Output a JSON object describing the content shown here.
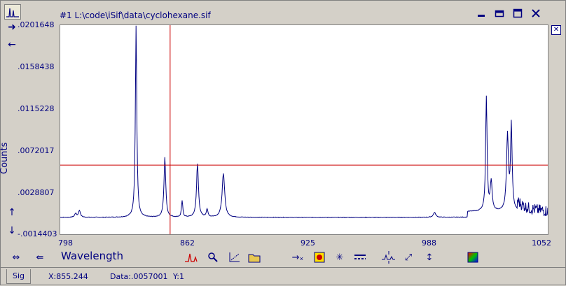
{
  "window": {
    "title": "#1  L:\\code\\iSif\\data\\cyclohexane.sif"
  },
  "icons": {
    "top_left": "spectrum-icon",
    "window_buttons": [
      "minimize-icon",
      "restore-icon",
      "maximize-icon",
      "close-icon"
    ]
  },
  "chart_data": {
    "type": "line",
    "ylabel": "Counts",
    "xlabel": "Wavelength",
    "y_ticks": [
      ".0201648",
      ".0158438",
      ".0115228",
      ".0072017",
      ".0028807",
      "-.0014403"
    ],
    "x_ticks": [
      "798",
      "862",
      "925",
      "988",
      "1052"
    ],
    "xlim": [
      798,
      1052
    ],
    "ylim": [
      -0.0014403,
      0.0201648
    ],
    "baseline": 0.0003,
    "peaks": [
      {
        "x": 806.0,
        "y": 0.0004,
        "w": 0.6
      },
      {
        "x": 808.0,
        "y": 0.0007,
        "w": 0.6
      },
      {
        "x": 837.5,
        "y": 0.0198,
        "w": 0.45
      },
      {
        "x": 852.5,
        "y": 0.0062,
        "w": 0.55
      },
      {
        "x": 861.5,
        "y": 0.0017,
        "w": 0.4
      },
      {
        "x": 869.5,
        "y": 0.0055,
        "w": 0.6
      },
      {
        "x": 874.5,
        "y": 0.0008,
        "w": 0.5
      },
      {
        "x": 883.0,
        "y": 0.0045,
        "w": 0.8
      },
      {
        "x": 993.0,
        "y": 0.0005,
        "w": 0.8
      },
      {
        "x": 1020.0,
        "y": 0.0118,
        "w": 0.45
      },
      {
        "x": 1022.5,
        "y": 0.003,
        "w": 0.6
      },
      {
        "x": 1031.0,
        "y": 0.0078,
        "w": 0.6
      },
      {
        "x": 1033.0,
        "y": 0.0088,
        "w": 0.5
      }
    ],
    "cursor": {
      "x": 855.244,
      "y": 0.0057001
    }
  },
  "toolbar": {
    "tools": [
      "peak-label-icon",
      "zoom-icon",
      "fit-icon",
      "open-folder-icon",
      "move-cursor-icon",
      "color-palette-icon",
      "crosshair-icon",
      "line-style-icon",
      "scale-y-icon",
      "resize-icon",
      "vertical-resize-icon",
      "color-map-icon"
    ],
    "left_nav": [
      "double-horizontal-arrow-icon",
      "double-left-arrow-icon"
    ]
  },
  "status": {
    "tab": "Sig",
    "x_readout": "X:855.244",
    "data_readout": "Data:.0057001",
    "y_readout": "Y:1"
  },
  "colors": {
    "trace": "#000080",
    "cursor": "#cc0000",
    "text": "#000080"
  }
}
